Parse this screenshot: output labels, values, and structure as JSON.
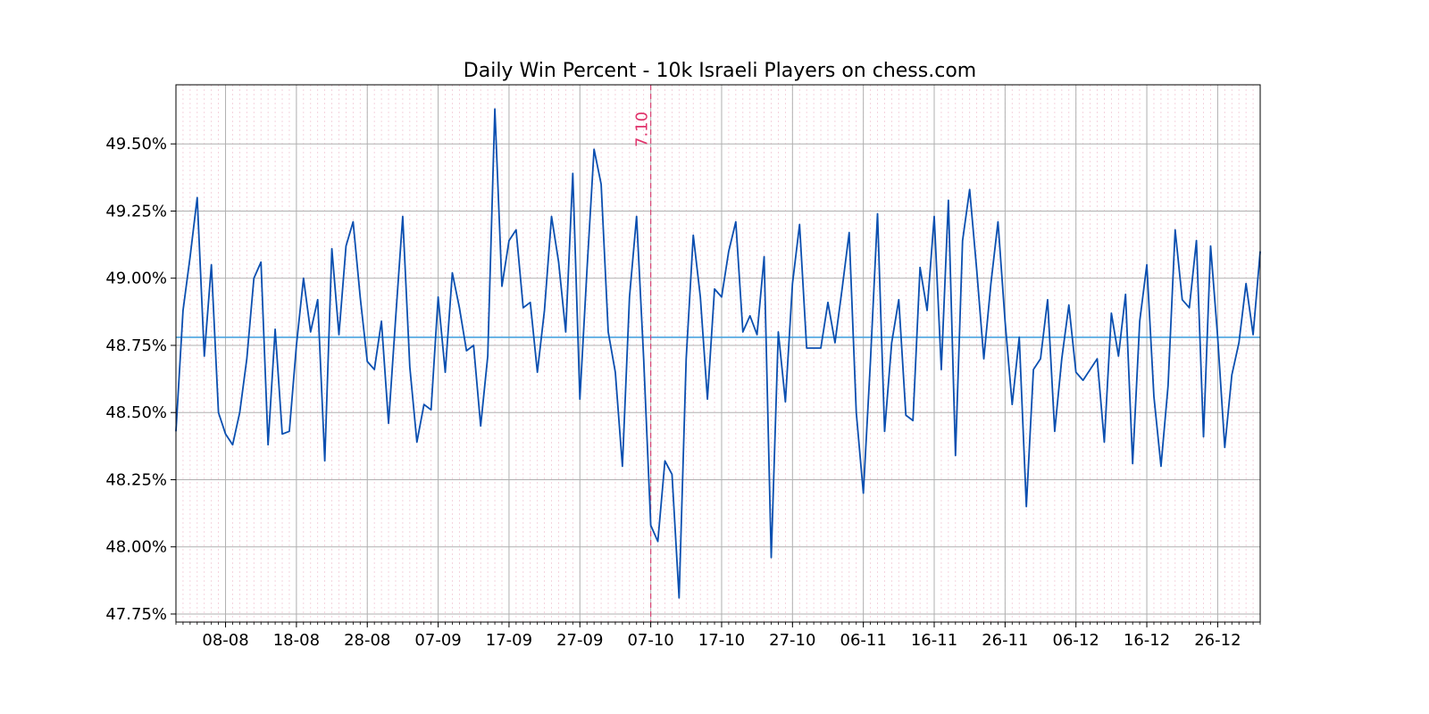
{
  "chart_data": {
    "type": "line",
    "title": "Daily Win Percent - 10k Israeli Players on chess.com",
    "xlabel": "",
    "ylabel": "",
    "x_start": "2023-08-01",
    "x_end": "2023-12-31",
    "ylim": [
      47.72,
      49.72
    ],
    "y_ticks": [
      47.75,
      48.0,
      48.25,
      48.5,
      48.75,
      49.0,
      49.25,
      49.5
    ],
    "y_tick_labels": [
      "47.75%",
      "48.00%",
      "48.25%",
      "48.50%",
      "48.75%",
      "49.00%",
      "49.25%",
      "49.50%"
    ],
    "x_tick_labels": [
      "08-08",
      "18-08",
      "28-08",
      "07-09",
      "17-09",
      "27-09",
      "07-10",
      "17-10",
      "27-10",
      "06-11",
      "16-11",
      "26-11",
      "06-12",
      "16-12",
      "26-12"
    ],
    "x_tick_days": [
      7,
      17,
      27,
      37,
      47,
      57,
      67,
      77,
      87,
      97,
      107,
      117,
      127,
      137,
      147
    ],
    "grid": true,
    "series": [
      {
        "name": "Daily win percent",
        "color": "#0b4fb0",
        "values": [
          48.43,
          48.88,
          49.08,
          49.3,
          48.71,
          49.05,
          48.5,
          48.42,
          48.38,
          48.5,
          48.7,
          49.0,
          49.06,
          48.38,
          48.81,
          48.42,
          48.43,
          48.75,
          49.0,
          48.8,
          48.92,
          48.32,
          49.11,
          48.79,
          49.12,
          49.21,
          48.93,
          48.69,
          48.66,
          48.84,
          48.46,
          48.85,
          49.23,
          48.67,
          48.39,
          48.53,
          48.51,
          48.93,
          48.65,
          49.02,
          48.89,
          48.73,
          48.75,
          48.45,
          48.71,
          49.63,
          48.97,
          49.14,
          49.18,
          48.89,
          48.91,
          48.65,
          48.88,
          49.23,
          49.06,
          48.8,
          49.39,
          48.55,
          49.03,
          49.48,
          49.35,
          48.8,
          48.65,
          48.3,
          48.93,
          49.23,
          48.7,
          48.08,
          48.02,
          48.32,
          48.27,
          47.81,
          48.7,
          49.16,
          48.93,
          48.55,
          48.96,
          48.93,
          49.1,
          49.21,
          48.8,
          48.86,
          48.79,
          49.08,
          47.96,
          48.8,
          48.54,
          48.98,
          49.2,
          48.74,
          48.74,
          48.74,
          48.91,
          48.76,
          48.96,
          49.17,
          48.5,
          48.2,
          48.69,
          49.24,
          48.43,
          48.76,
          48.92,
          48.49,
          48.47,
          49.04,
          48.88,
          49.23,
          48.66,
          49.29,
          48.34,
          49.14,
          49.33,
          49.03,
          48.7,
          48.98,
          49.21,
          48.84,
          48.53,
          48.78,
          48.15,
          48.66,
          48.7,
          48.92,
          48.43,
          48.7,
          48.9,
          48.65,
          48.62,
          48.66,
          48.7,
          48.39,
          48.87,
          48.71,
          48.94,
          48.31,
          48.84,
          49.05,
          48.56,
          48.3,
          48.6,
          49.18,
          48.92,
          48.89,
          49.14,
          48.41,
          49.12,
          48.78,
          48.37,
          48.64,
          48.76,
          48.98,
          48.79,
          49.1
        ]
      }
    ],
    "mean_line": {
      "value": 48.78,
      "color": "#4aa3df"
    },
    "event_line": {
      "day": 67,
      "label": "7.10",
      "color": "#e0336b"
    }
  }
}
